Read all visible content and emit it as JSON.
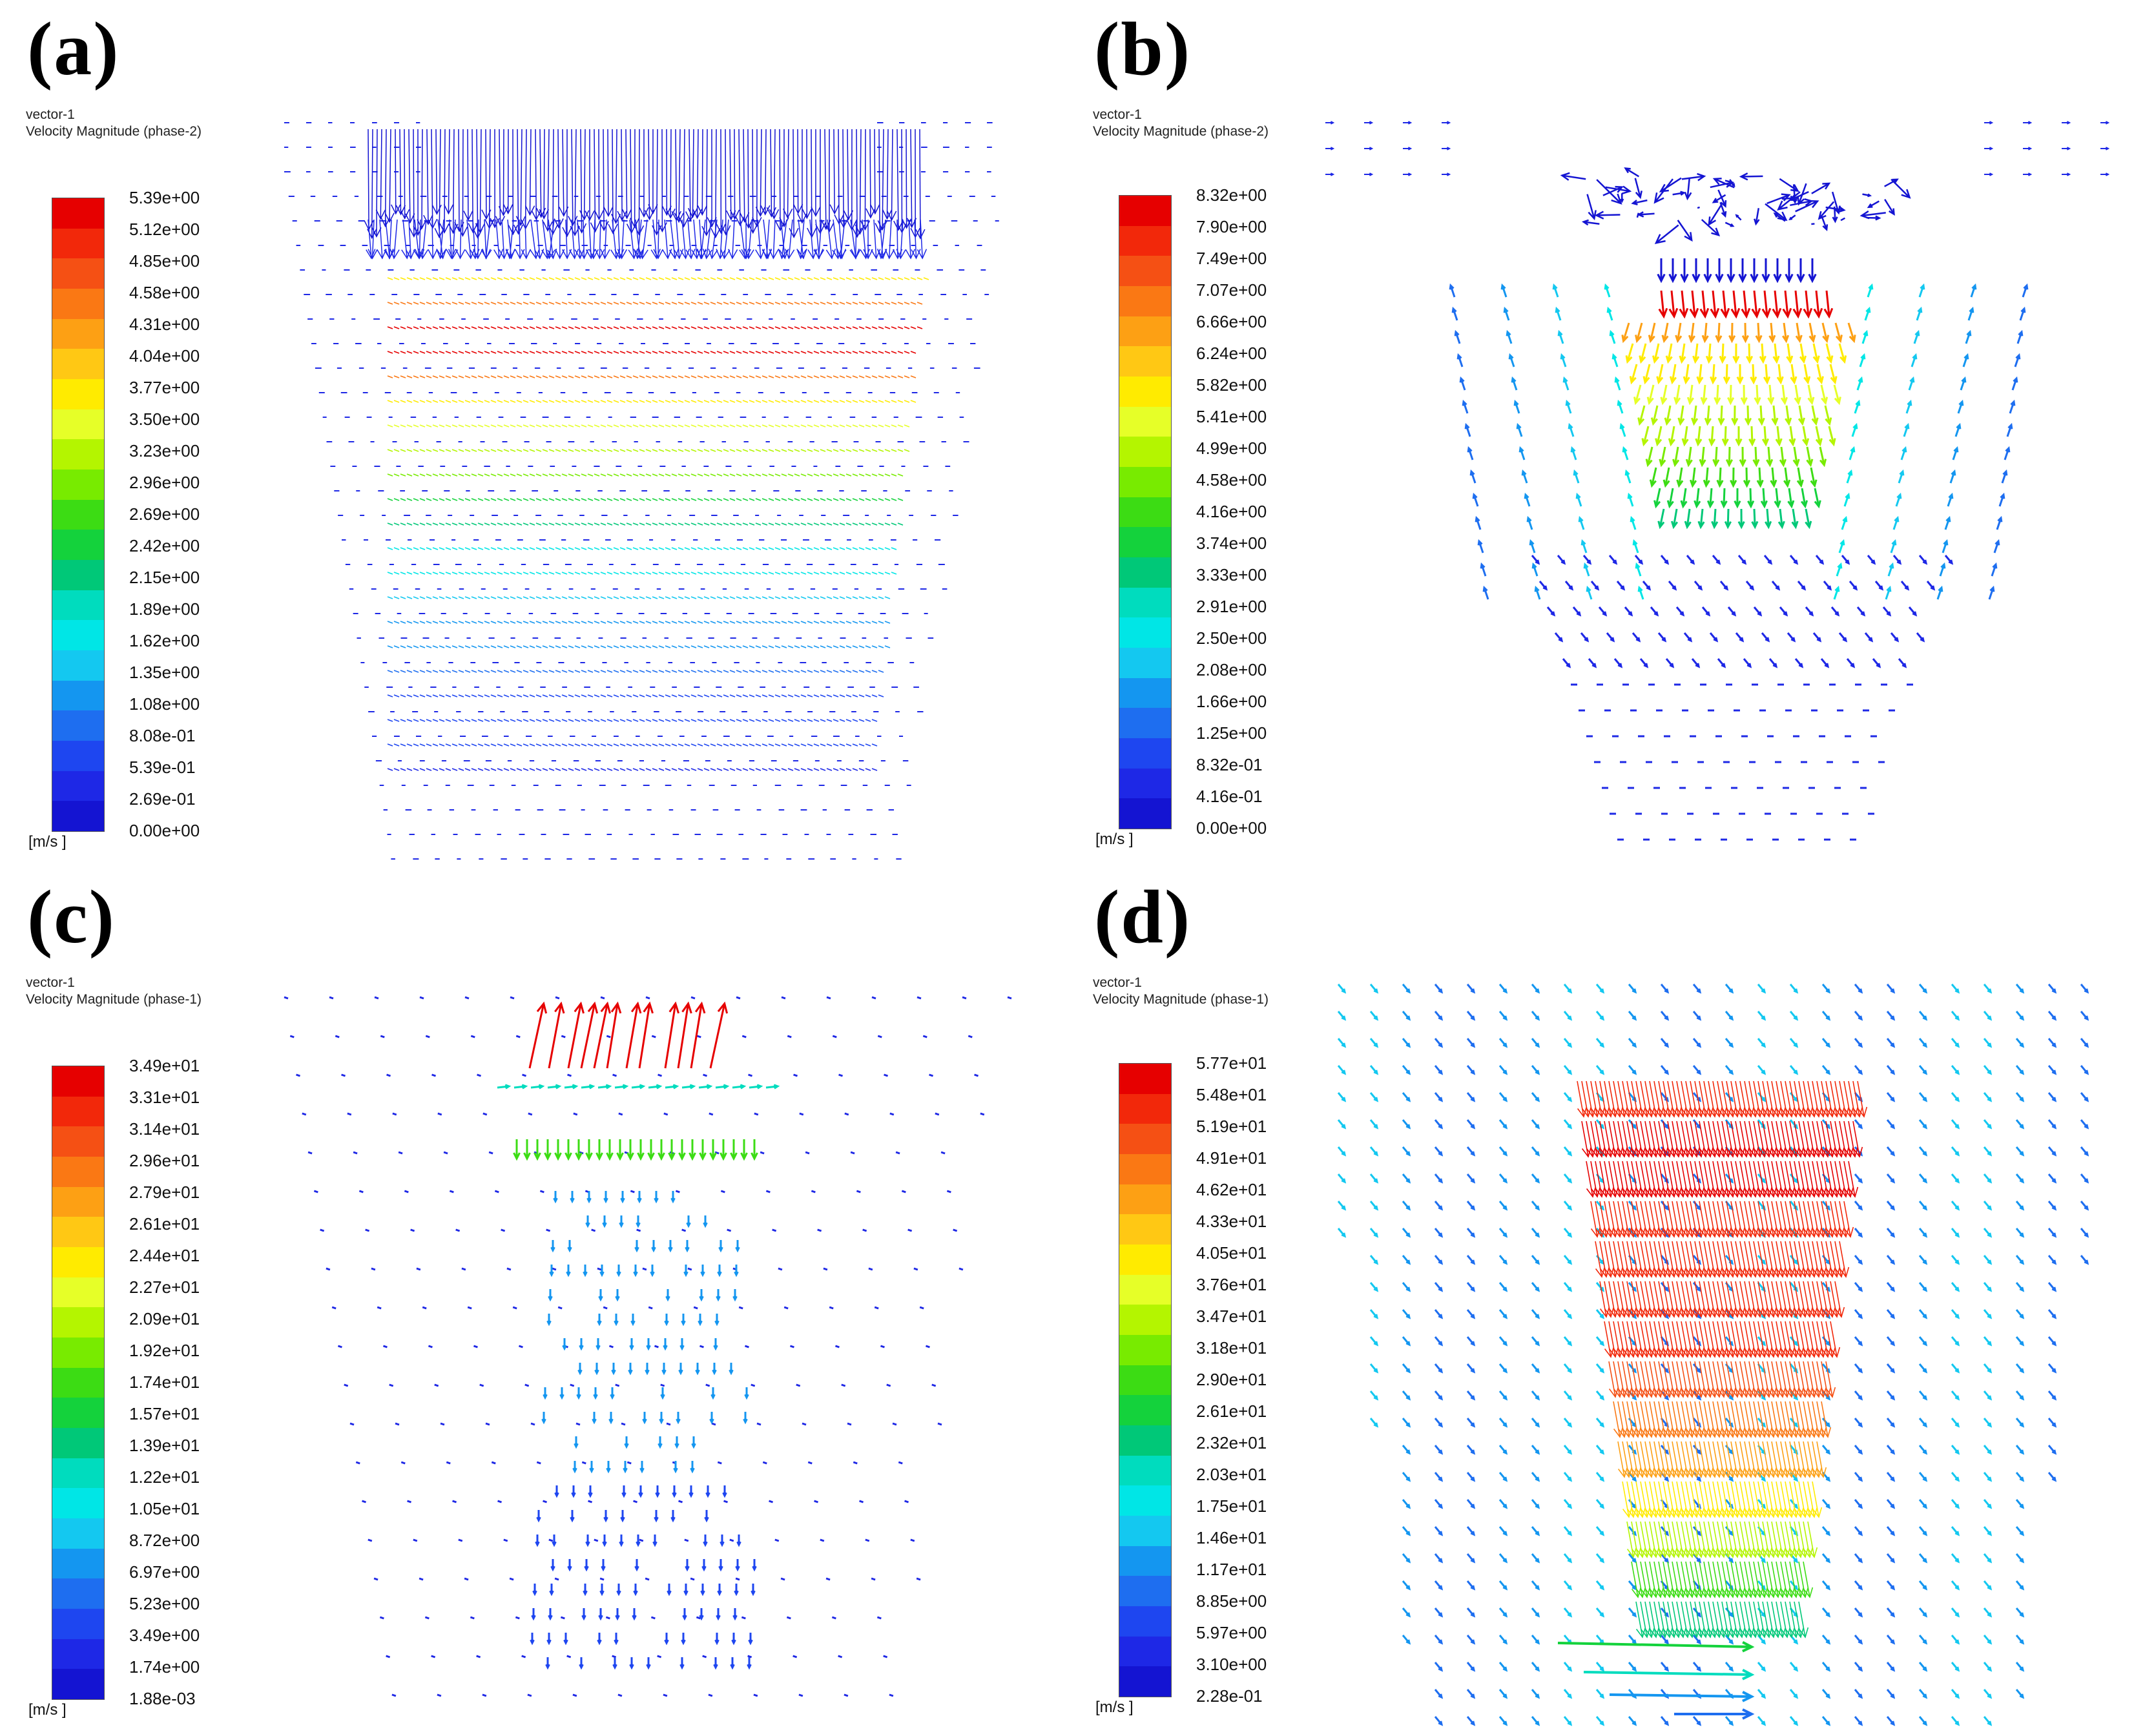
{
  "chart_data": [
    {
      "type": "vector-field",
      "panel_label": "(a)",
      "header_line1": "vector-1",
      "header_line2": "Velocity Magnitude (phase-2)",
      "unit": "[m/s ]",
      "colorbar_min": 0.0,
      "colorbar_max": 5.39,
      "colorbar_ticks": [
        "5.39e+00",
        "5.12e+00",
        "4.85e+00",
        "4.58e+00",
        "4.31e+00",
        "4.04e+00",
        "3.77e+00",
        "3.50e+00",
        "3.23e+00",
        "2.96e+00",
        "2.69e+00",
        "2.42e+00",
        "2.15e+00",
        "1.89e+00",
        "1.62e+00",
        "1.35e+00",
        "1.08e+00",
        "8.08e-01",
        "5.39e-01",
        "2.69e-01",
        "0.00e+00"
      ],
      "pattern": "a"
    },
    {
      "type": "vector-field",
      "panel_label": "(b)",
      "header_line1": "vector-1",
      "header_line2": "Velocity Magnitude (phase-2)",
      "unit": "[m/s ]",
      "colorbar_min": 0.0,
      "colorbar_max": 8.32,
      "colorbar_ticks": [
        "8.32e+00",
        "7.90e+00",
        "7.49e+00",
        "7.07e+00",
        "6.66e+00",
        "6.24e+00",
        "5.82e+00",
        "5.41e+00",
        "4.99e+00",
        "4.58e+00",
        "4.16e+00",
        "3.74e+00",
        "3.33e+00",
        "2.91e+00",
        "2.50e+00",
        "2.08e+00",
        "1.66e+00",
        "1.25e+00",
        "8.32e-01",
        "4.16e-01",
        "0.00e+00"
      ],
      "pattern": "b"
    },
    {
      "type": "vector-field",
      "panel_label": "(c)",
      "header_line1": "vector-1",
      "header_line2": "Velocity Magnitude (phase-1)",
      "unit": "[m/s ]",
      "colorbar_min": 0.00188,
      "colorbar_max": 34.9,
      "colorbar_ticks": [
        "3.49e+01",
        "3.31e+01",
        "3.14e+01",
        "2.96e+01",
        "2.79e+01",
        "2.61e+01",
        "2.44e+01",
        "2.27e+01",
        "2.09e+01",
        "1.92e+01",
        "1.74e+01",
        "1.57e+01",
        "1.39e+01",
        "1.22e+01",
        "1.05e+01",
        "8.72e+00",
        "6.97e+00",
        "5.23e+00",
        "3.49e+00",
        "1.74e+00",
        "1.88e-03"
      ],
      "pattern": "c"
    },
    {
      "type": "vector-field",
      "panel_label": "(d)",
      "header_line1": "vector-1",
      "header_line2": "Velocity Magnitude (phase-1)",
      "unit": "[m/s ]",
      "colorbar_min": 0.228,
      "colorbar_max": 57.7,
      "colorbar_ticks": [
        "5.77e+01",
        "5.48e+01",
        "5.19e+01",
        "4.91e+01",
        "4.62e+01",
        "4.33e+01",
        "4.05e+01",
        "3.76e+01",
        "3.47e+01",
        "3.18e+01",
        "2.90e+01",
        "2.61e+01",
        "2.32e+01",
        "2.03e+01",
        "1.75e+01",
        "1.46e+01",
        "1.17e+01",
        "8.85e+00",
        "5.97e+00",
        "3.10e+00",
        "2.28e-01"
      ],
      "pattern": "d"
    }
  ],
  "colorbar_colors": [
    "#e60000",
    "#f2280a",
    "#f55014",
    "#fa7814",
    "#fda014",
    "#ffc814",
    "#ffeb00",
    "#e6ff28",
    "#b4f500",
    "#78eb00",
    "#3cdc14",
    "#14d23c",
    "#00c878",
    "#00dcbe",
    "#00e6e6",
    "#14c8f0",
    "#1496f0",
    "#1e6ef0",
    "#1e46f0",
    "#1e28e6",
    "#1414d2"
  ]
}
